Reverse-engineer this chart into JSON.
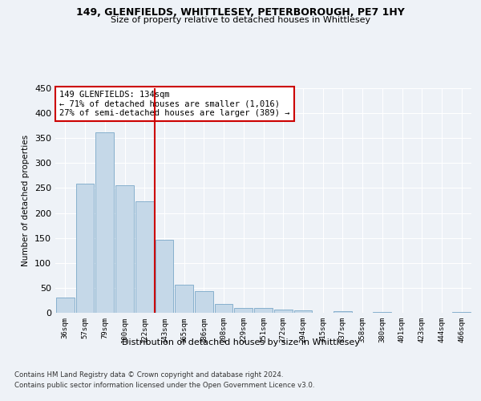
{
  "title1": "149, GLENFIELDS, WHITTLESEY, PETERBOROUGH, PE7 1HY",
  "title2": "Size of property relative to detached houses in Whittlesey",
  "xlabel": "Distribution of detached houses by size in Whittlesey",
  "ylabel": "Number of detached properties",
  "categories": [
    "36sqm",
    "57sqm",
    "79sqm",
    "100sqm",
    "122sqm",
    "143sqm",
    "165sqm",
    "186sqm",
    "208sqm",
    "229sqm",
    "251sqm",
    "272sqm",
    "294sqm",
    "315sqm",
    "337sqm",
    "358sqm",
    "380sqm",
    "401sqm",
    "423sqm",
    "444sqm",
    "466sqm"
  ],
  "values": [
    30,
    258,
    362,
    255,
    224,
    147,
    56,
    44,
    18,
    10,
    10,
    6,
    5,
    0,
    4,
    0,
    2,
    0,
    0,
    0,
    1
  ],
  "bar_color": "#c5d8e8",
  "bar_edge_color": "#7aa8c8",
  "highlight_color": "#cc0000",
  "annotation_text": "149 GLENFIELDS: 134sqm\n← 71% of detached houses are smaller (1,016)\n27% of semi-detached houses are larger (389) →",
  "annotation_box_color": "#ffffff",
  "annotation_box_edge": "#cc0000",
  "footer1": "Contains HM Land Registry data © Crown copyright and database right 2024.",
  "footer2": "Contains public sector information licensed under the Open Government Licence v3.0.",
  "bg_color": "#eef2f7",
  "grid_color": "#ffffff",
  "ylim": [
    0,
    450
  ],
  "yticks": [
    0,
    50,
    100,
    150,
    200,
    250,
    300,
    350,
    400,
    450
  ]
}
